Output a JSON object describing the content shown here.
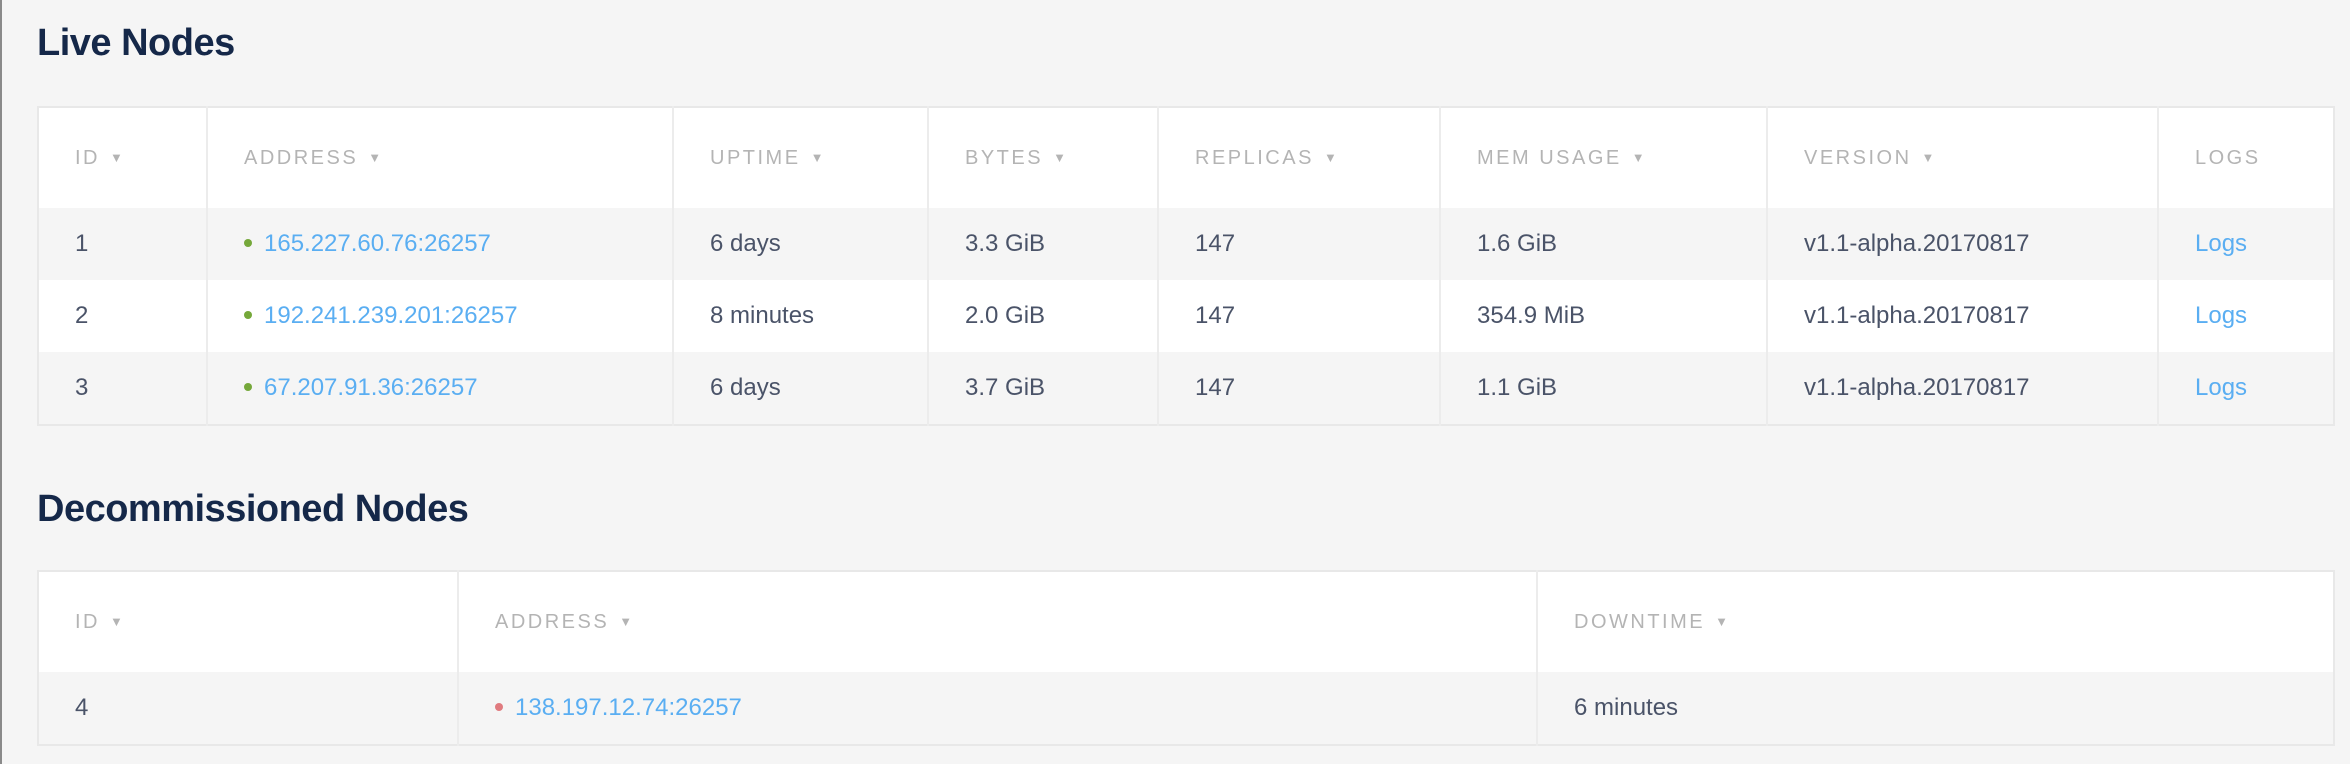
{
  "colors": {
    "live": "#75a83a",
    "decommissioned": "#e07b7f",
    "link": "#5aaef2",
    "title": "#152849"
  },
  "live": {
    "title": "Live Nodes",
    "columns": [
      {
        "label": "ID",
        "sort": "▼"
      },
      {
        "label": "ADDRESS",
        "sort": "▼"
      },
      {
        "label": "UPTIME",
        "sort": "▼"
      },
      {
        "label": "BYTES",
        "sort": "▼"
      },
      {
        "label": "REPLICAS",
        "sort": "▼"
      },
      {
        "label": "MEM USAGE",
        "sort": "▼"
      },
      {
        "label": "VERSION",
        "sort": "▼"
      },
      {
        "label": "LOGS",
        "sort": ""
      }
    ],
    "rows": [
      {
        "id": "1",
        "address": "165.227.60.76:26257",
        "uptime": "6 days",
        "bytes": "3.3 GiB",
        "replicas": "147",
        "mem": "1.6 GiB",
        "version": "v1.1-alpha.20170817",
        "logs": "Logs"
      },
      {
        "id": "2",
        "address": "192.241.239.201:26257",
        "uptime": "8 minutes",
        "bytes": "2.0 GiB",
        "replicas": "147",
        "mem": "354.9 MiB",
        "version": "v1.1-alpha.20170817",
        "logs": "Logs"
      },
      {
        "id": "3",
        "address": "67.207.91.36:26257",
        "uptime": "6 days",
        "bytes": "3.7 GiB",
        "replicas": "147",
        "mem": "1.1 GiB",
        "version": "v1.1-alpha.20170817",
        "logs": "Logs"
      }
    ]
  },
  "decommissioned": {
    "title": "Decommissioned Nodes",
    "columns": [
      {
        "label": "ID",
        "sort": "▼"
      },
      {
        "label": "ADDRESS",
        "sort": "▼"
      },
      {
        "label": "DOWNTIME",
        "sort": "▼"
      }
    ],
    "rows": [
      {
        "id": "4",
        "address": "138.197.12.74:26257",
        "downtime": "6 minutes"
      }
    ]
  }
}
